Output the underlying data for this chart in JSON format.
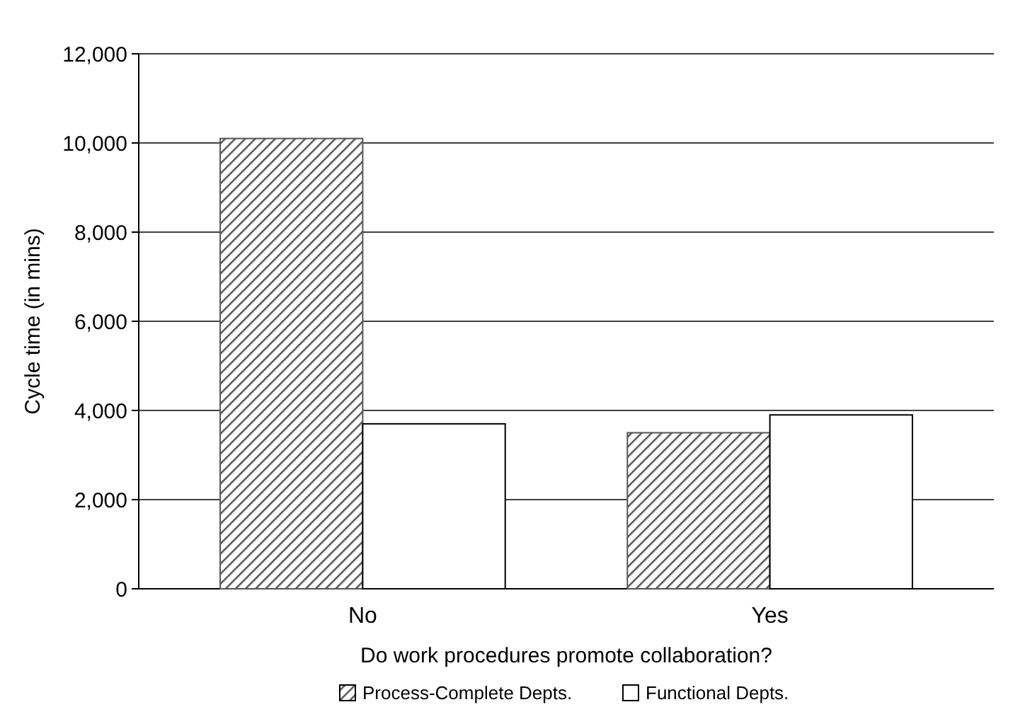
{
  "chart_data": {
    "type": "bar",
    "xlabel": "Do work procedures promote collaboration?",
    "ylabel": "Cycle time (in mins)",
    "categories": [
      "No",
      "Yes"
    ],
    "series": [
      {
        "name": "Process-Complete Depts.",
        "color": "#555555",
        "values": [
          10100,
          3500
        ]
      },
      {
        "name": "Functional Depts.",
        "color": "#ffffff",
        "values": [
          3700,
          3900
        ]
      }
    ],
    "ylim": [
      0,
      12000
    ],
    "yticks": [
      0,
      {
        "value": 2000,
        "label": "2,000"
      },
      {
        "value": 4000,
        "label": "4,000"
      },
      {
        "value": 6000,
        "label": "6,000"
      },
      {
        "value": 8000,
        "label": "8,000"
      },
      {
        "value": 10000,
        "label": "10,000"
      },
      {
        "value": 12000,
        "label": "12,000"
      }
    ],
    "grid": "y",
    "legend": "bottom"
  }
}
